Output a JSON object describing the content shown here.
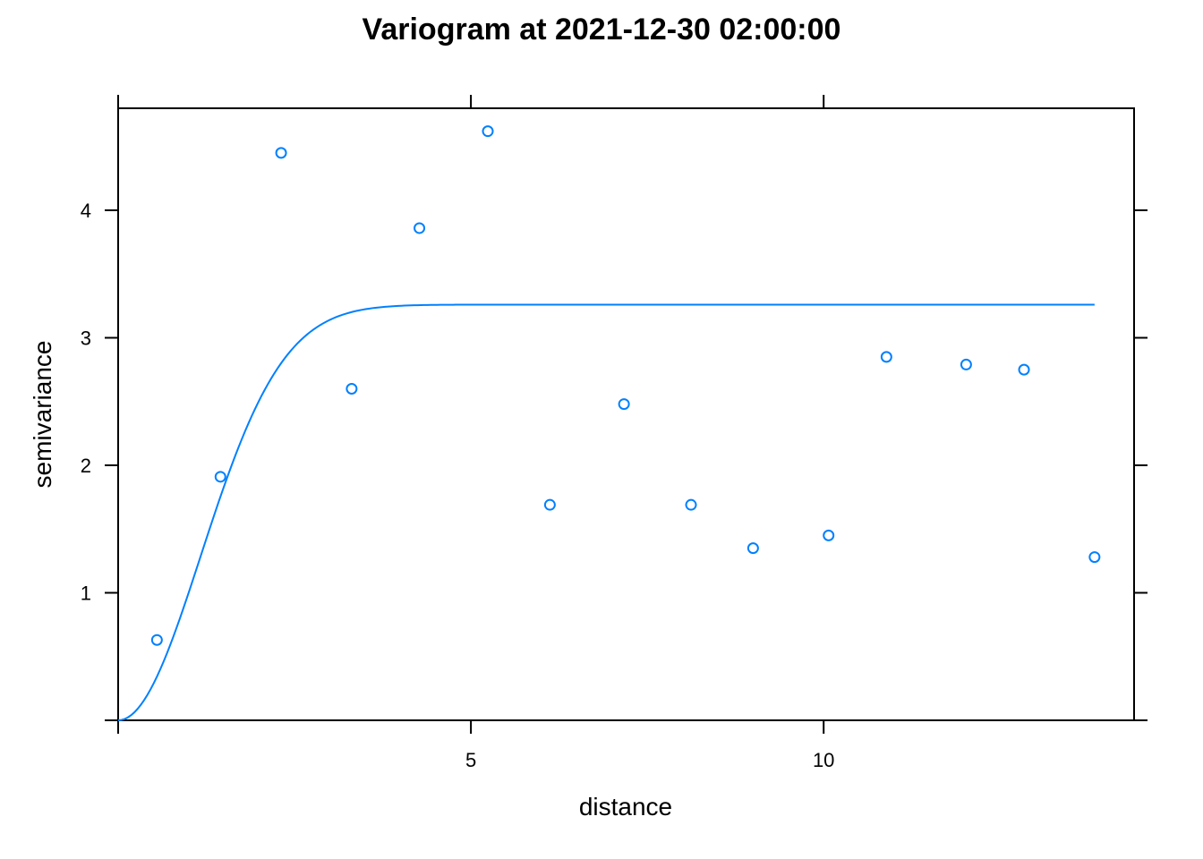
{
  "chart_data": {
    "type": "scatter",
    "title": "Variogram at 2021-12-30 02:00:00",
    "xlabel": "distance",
    "ylabel": "semivariance",
    "xlim": [
      0,
      14.4
    ],
    "ylim": [
      0,
      4.8
    ],
    "grid": false,
    "x_ticks": [
      {
        "value": 5,
        "label": "5"
      },
      {
        "value": 10,
        "label": "10"
      }
    ],
    "y_ticks": [
      {
        "value": 1,
        "label": "1"
      },
      {
        "value": 2,
        "label": "2"
      },
      {
        "value": 3,
        "label": "3"
      },
      {
        "value": 4,
        "label": "4"
      }
    ],
    "series": [
      {
        "color": "#0080ff",
        "marker": "open-circle",
        "points": [
          {
            "x": 0.55,
            "y": 0.63
          },
          {
            "x": 1.45,
            "y": 1.91
          },
          {
            "x": 2.31,
            "y": 4.45
          },
          {
            "x": 3.31,
            "y": 2.6
          },
          {
            "x": 4.27,
            "y": 3.86
          },
          {
            "x": 5.24,
            "y": 4.62
          },
          {
            "x": 6.12,
            "y": 1.69
          },
          {
            "x": 7.17,
            "y": 2.48
          },
          {
            "x": 8.12,
            "y": 1.69
          },
          {
            "x": 9.0,
            "y": 1.35
          },
          {
            "x": 10.07,
            "y": 1.45
          },
          {
            "x": 10.89,
            "y": 2.85
          },
          {
            "x": 12.02,
            "y": 2.79
          },
          {
            "x": 12.84,
            "y": 2.75
          },
          {
            "x": 13.84,
            "y": 1.28
          }
        ]
      }
    ],
    "model_curve": {
      "color": "#0080ff",
      "model": "gaussian",
      "nugget": 0,
      "sill": 3.26,
      "range": 1.65,
      "x_max": 13.84
    }
  }
}
